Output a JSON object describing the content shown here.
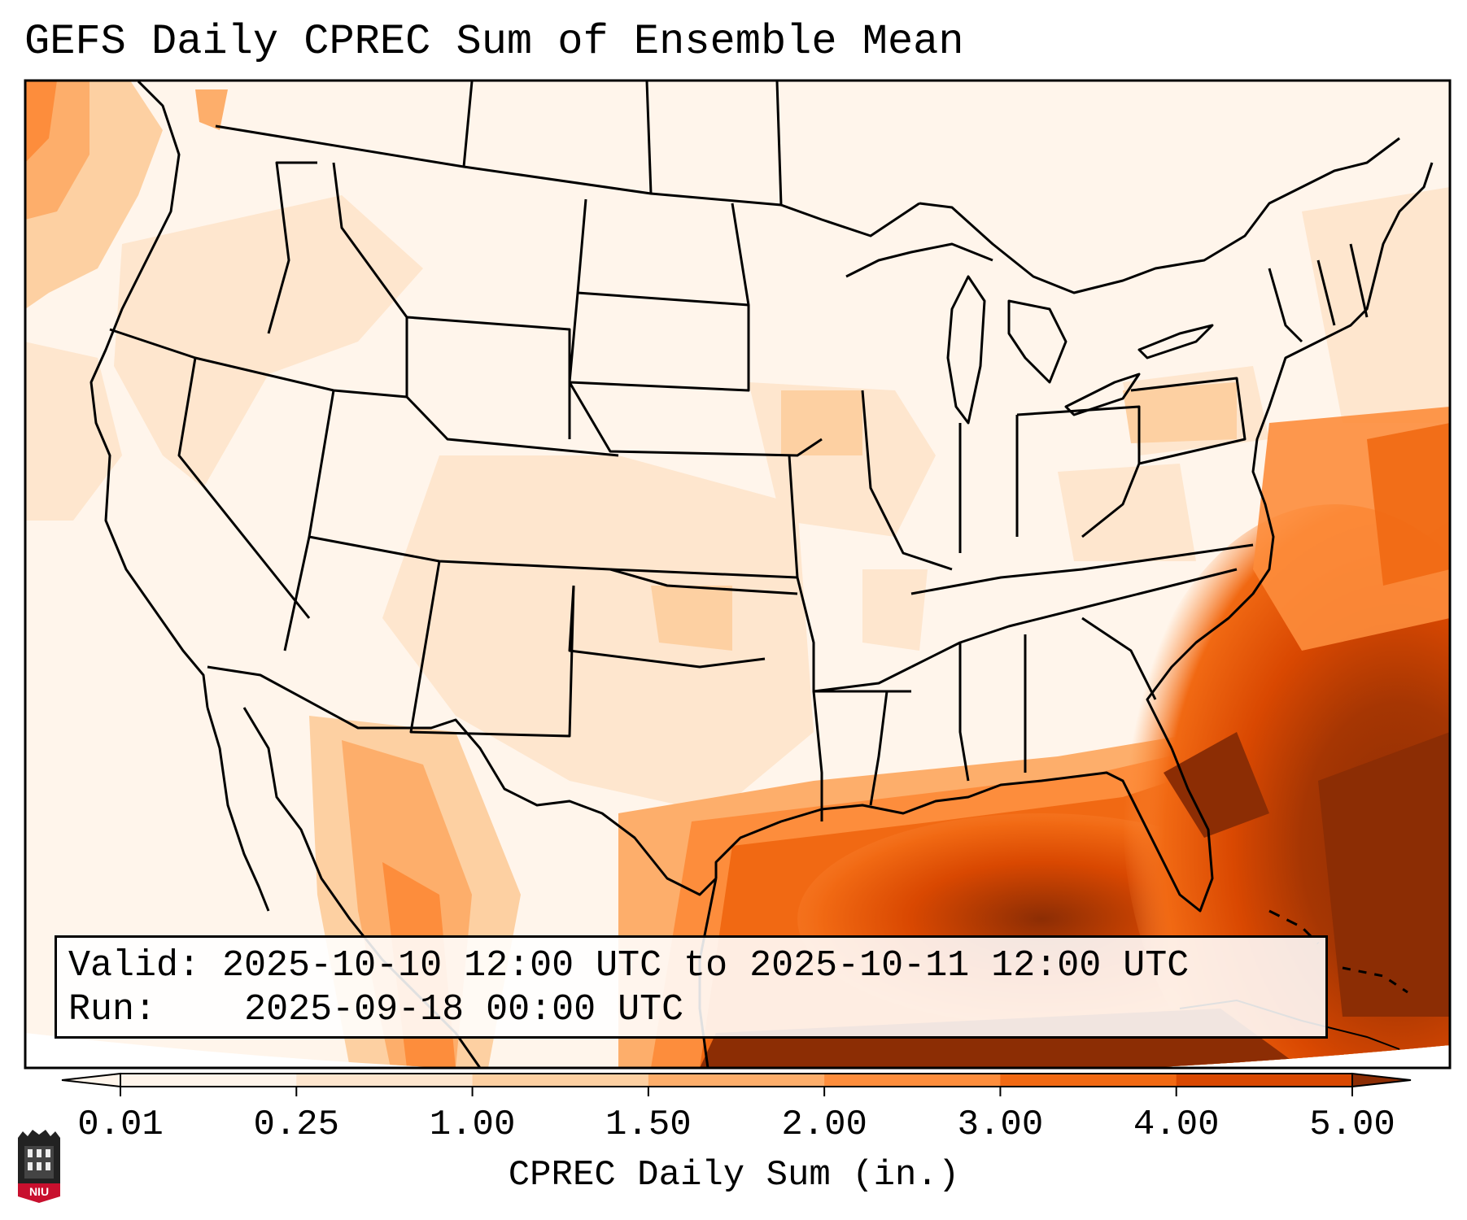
{
  "title": "GEFS Daily CPREC Sum of Ensemble Mean",
  "info": {
    "valid_label": "Valid:",
    "valid_value": "2025-10-10 12:00 UTC to 2025-10-11 12:00 UTC",
    "run_label": "Run:",
    "run_value": "2025-09-18 00:00 UTC"
  },
  "colorbar": {
    "label": "CPREC Daily Sum (in.)",
    "ticks": [
      "0.01",
      "0.25",
      "1.00",
      "1.50",
      "2.00",
      "3.00",
      "4.00",
      "5.00"
    ],
    "colors": [
      "#fff5eb",
      "#fee6ce",
      "#fdd0a2",
      "#fdae6b",
      "#fd8d3c",
      "#f16913",
      "#d94801",
      "#8c2d04"
    ],
    "extend": "both"
  },
  "map": {
    "region": "Continental United States",
    "projection": "Lambert Conformal",
    "features": [
      "coastlines",
      "state borders",
      "country borders"
    ]
  },
  "logo": {
    "text": "NIU",
    "color": "#c8102e"
  }
}
